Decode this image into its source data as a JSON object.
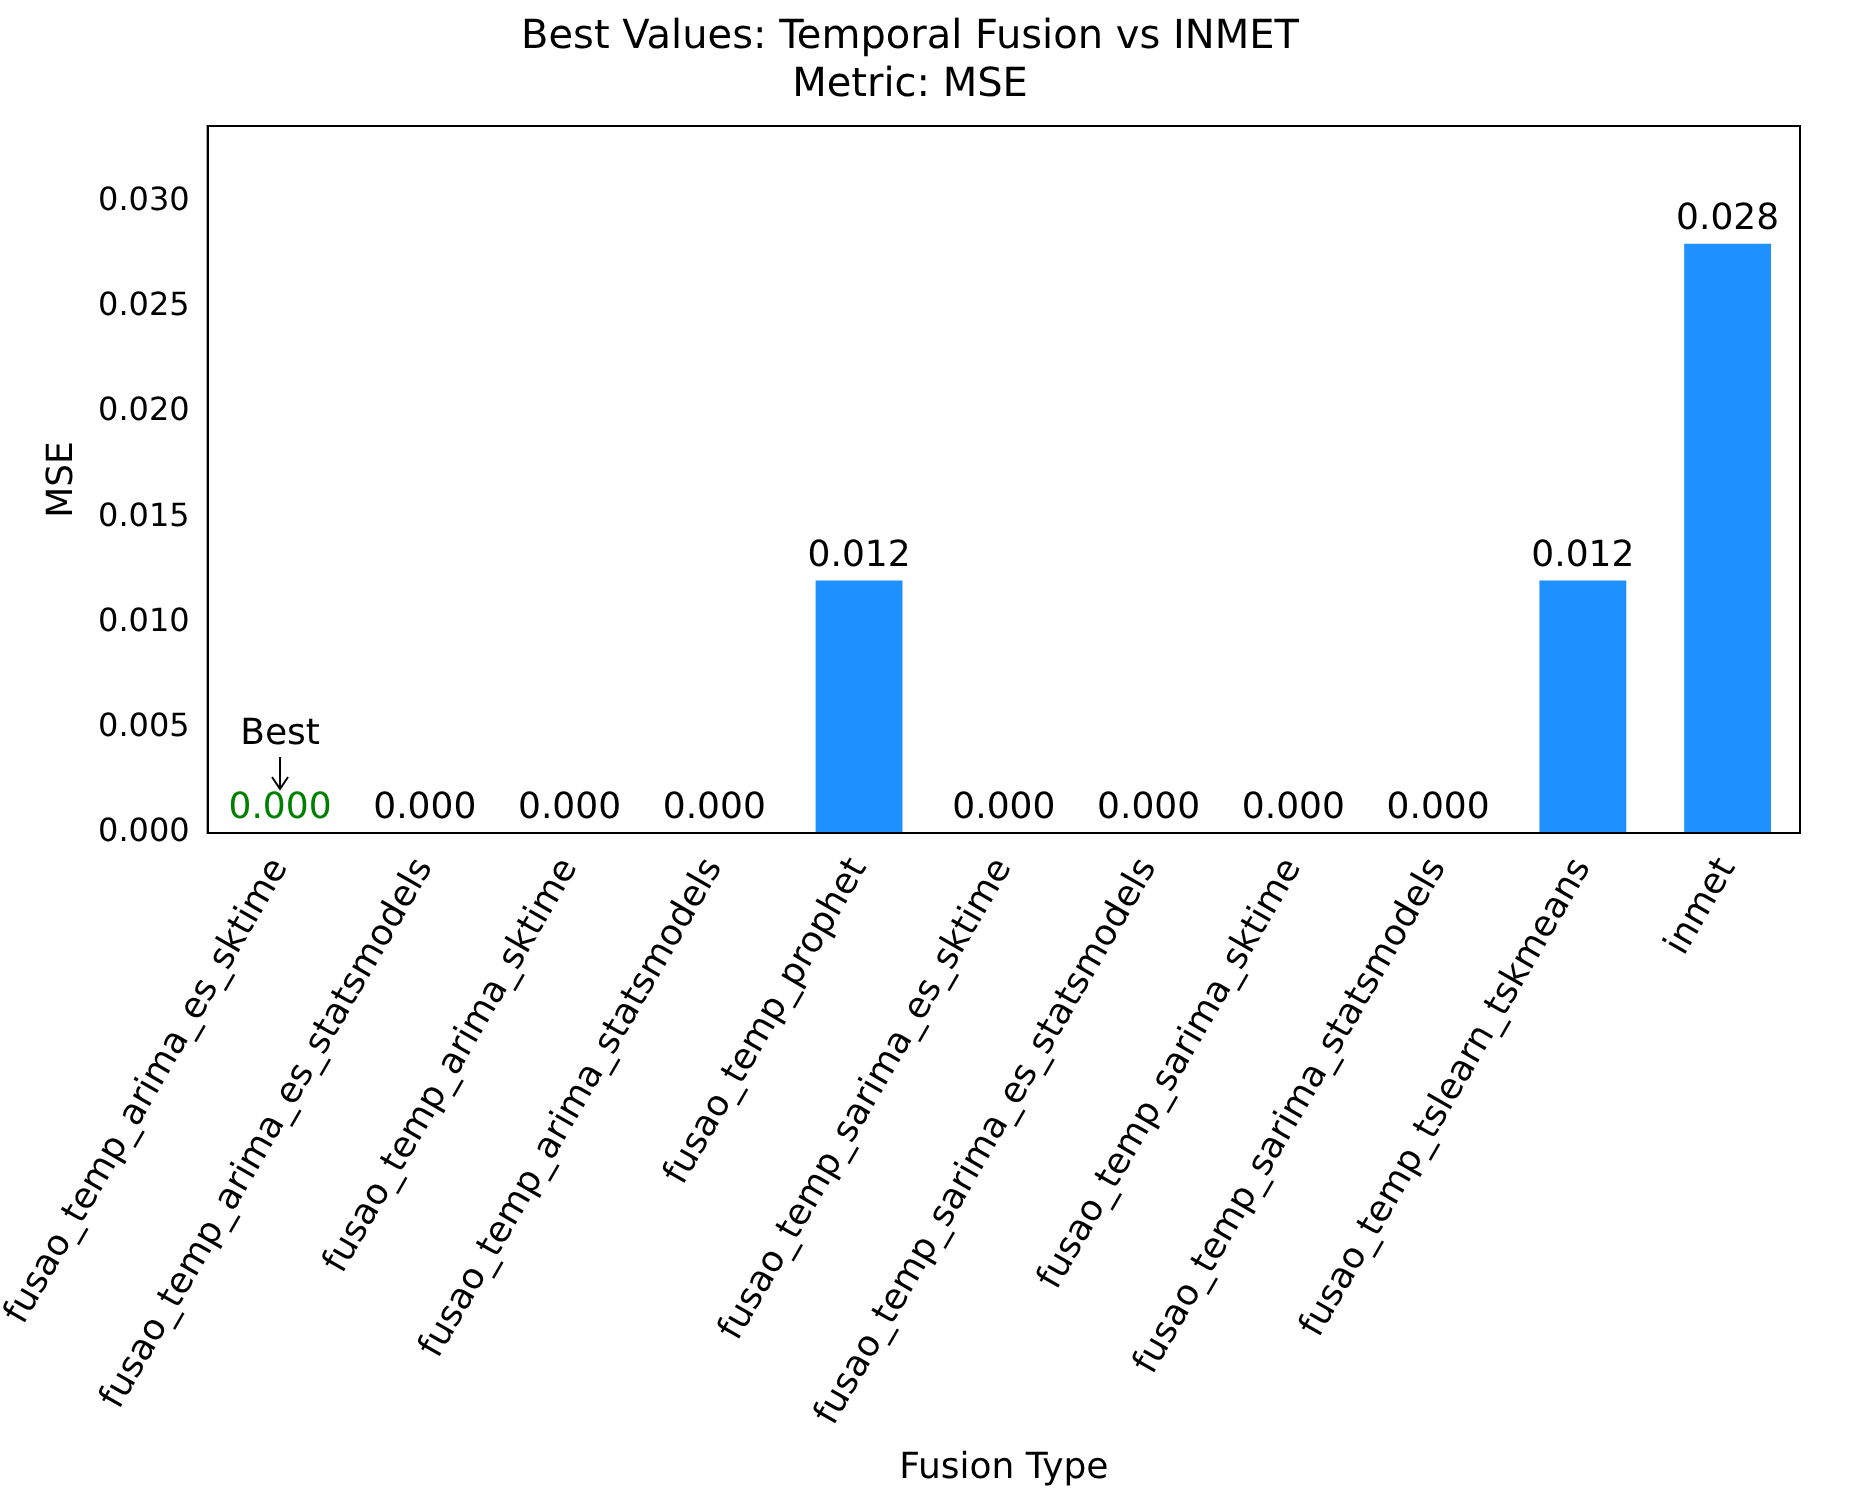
{
  "chart_data": {
    "type": "bar",
    "title": "Best Values: Temporal Fusion vs INMET",
    "subtitle": "Metric: MSE",
    "xlabel": "Fusion Type",
    "ylabel": "MSE",
    "categories": [
      "fusao_temp_arima_es_sktime",
      "fusao_temp_arima_es_statsmodels",
      "fusao_temp_arima_sktime",
      "fusao_temp_arima_statsmodels",
      "fusao_temp_prophet",
      "fusao_temp_sarima_es_sktime",
      "fusao_temp_sarima_es_statsmodels",
      "fusao_temp_sarima_sktime",
      "fusao_temp_sarima_statsmodels",
      "fusao_temp_tslearn_tskmeans",
      "inmet"
    ],
    "values": [
      0,
      0,
      0,
      0,
      0.012,
      0,
      0,
      0,
      0,
      0.012,
      0.028
    ],
    "value_labels": [
      "0.000",
      "0.000",
      "0.000",
      "0.000",
      "0.012",
      "0.000",
      "0.000",
      "0.000",
      "0.000",
      "0.012",
      "0.028"
    ],
    "color": "#1e90ff",
    "annotations": [
      {
        "text": "Best",
        "x": "fusao_temp_arima_es_sktime",
        "y": 0
      }
    ],
    "ylim": [
      0,
      0.0336
    ],
    "yticks": [
      {
        "value": 0,
        "label": "0.000"
      },
      0.005,
      {
        "value": 0.01,
        "label": "0.010"
      },
      0.015,
      {
        "value": 0.02,
        "label": "0.020"
      },
      0.025,
      {
        "value": 0.03,
        "label": "0.030"
      }
    ],
    "grid": false,
    "legend": false
  }
}
